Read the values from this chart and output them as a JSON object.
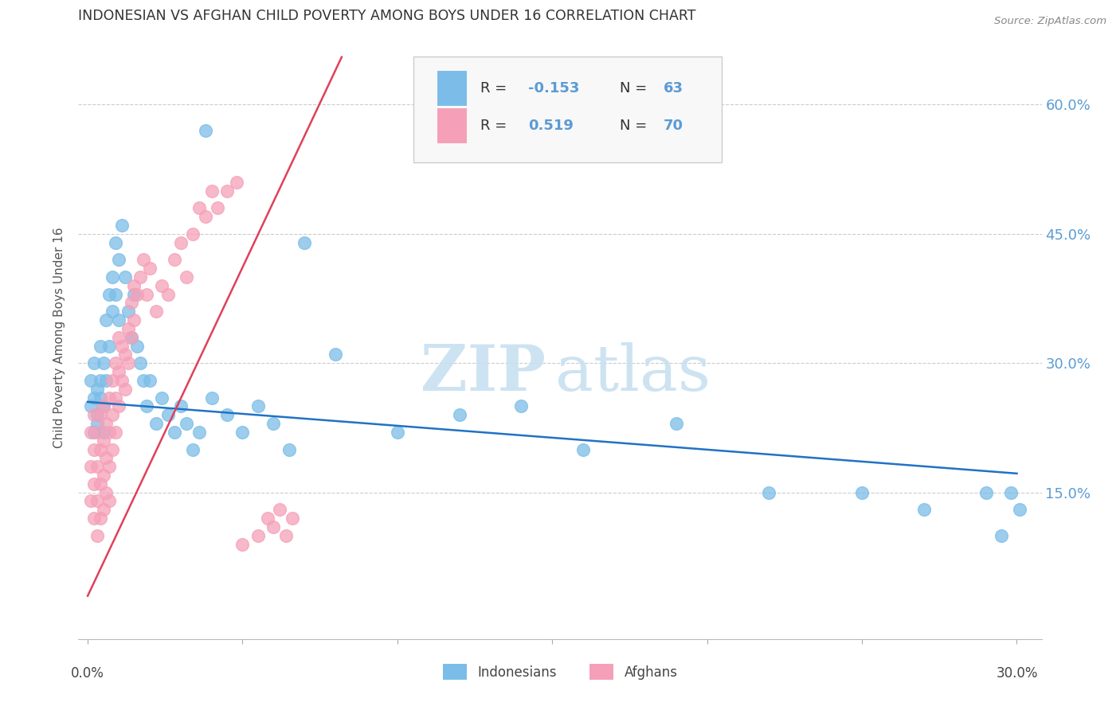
{
  "title": "INDONESIAN VS AFGHAN CHILD POVERTY AMONG BOYS UNDER 16 CORRELATION CHART",
  "source": "Source: ZipAtlas.com",
  "ylabel": "Child Poverty Among Boys Under 16",
  "ytick_values": [
    0.15,
    0.3,
    0.45,
    0.6
  ],
  "ytick_labels": [
    "15.0%",
    "30.0%",
    "45.0%",
    "60.0%"
  ],
  "xlim": [
    -0.003,
    0.308
  ],
  "ylim": [
    -0.02,
    0.68
  ],
  "watermark_zip": "ZIP",
  "watermark_atlas": "atlas",
  "legend_r_indonesian": "-0.153",
  "legend_n_indonesian": "63",
  "legend_r_afghan": "0.519",
  "legend_n_afghan": "70",
  "color_indonesian": "#7bbde8",
  "color_afghan": "#f5a0b8",
  "color_line_indonesian": "#2172c4",
  "color_line_afghan": "#e0405a",
  "ind_line_x0": 0.0,
  "ind_line_y0": 0.255,
  "ind_line_x1": 0.3,
  "ind_line_y1": 0.172,
  "afg_line_x0": 0.0,
  "afg_line_y0": 0.03,
  "afg_line_x1": 0.082,
  "afg_line_y1": 0.655,
  "indonesian_x": [
    0.001,
    0.001,
    0.002,
    0.002,
    0.002,
    0.003,
    0.003,
    0.003,
    0.004,
    0.004,
    0.004,
    0.005,
    0.005,
    0.005,
    0.006,
    0.006,
    0.007,
    0.007,
    0.008,
    0.008,
    0.009,
    0.009,
    0.01,
    0.01,
    0.011,
    0.012,
    0.013,
    0.014,
    0.015,
    0.016,
    0.017,
    0.018,
    0.019,
    0.02,
    0.022,
    0.024,
    0.026,
    0.028,
    0.03,
    0.032,
    0.034,
    0.036,
    0.038,
    0.04,
    0.045,
    0.05,
    0.055,
    0.06,
    0.065,
    0.07,
    0.08,
    0.1,
    0.12,
    0.14,
    0.16,
    0.19,
    0.22,
    0.25,
    0.27,
    0.29,
    0.295,
    0.298,
    0.301
  ],
  "indonesian_y": [
    0.25,
    0.28,
    0.22,
    0.26,
    0.3,
    0.24,
    0.27,
    0.23,
    0.32,
    0.26,
    0.28,
    0.25,
    0.3,
    0.22,
    0.35,
    0.28,
    0.38,
    0.32,
    0.36,
    0.4,
    0.44,
    0.38,
    0.42,
    0.35,
    0.46,
    0.4,
    0.36,
    0.33,
    0.38,
    0.32,
    0.3,
    0.28,
    0.25,
    0.28,
    0.23,
    0.26,
    0.24,
    0.22,
    0.25,
    0.23,
    0.2,
    0.22,
    0.57,
    0.26,
    0.24,
    0.22,
    0.25,
    0.23,
    0.2,
    0.44,
    0.31,
    0.22,
    0.24,
    0.25,
    0.2,
    0.23,
    0.15,
    0.15,
    0.13,
    0.15,
    0.1,
    0.15,
    0.13
  ],
  "afghan_x": [
    0.001,
    0.001,
    0.001,
    0.002,
    0.002,
    0.002,
    0.002,
    0.003,
    0.003,
    0.003,
    0.003,
    0.004,
    0.004,
    0.004,
    0.004,
    0.005,
    0.005,
    0.005,
    0.005,
    0.006,
    0.006,
    0.006,
    0.007,
    0.007,
    0.007,
    0.007,
    0.008,
    0.008,
    0.008,
    0.009,
    0.009,
    0.009,
    0.01,
    0.01,
    0.01,
    0.011,
    0.011,
    0.012,
    0.012,
    0.013,
    0.013,
    0.014,
    0.014,
    0.015,
    0.015,
    0.016,
    0.017,
    0.018,
    0.019,
    0.02,
    0.022,
    0.024,
    0.026,
    0.028,
    0.03,
    0.032,
    0.034,
    0.036,
    0.038,
    0.04,
    0.042,
    0.045,
    0.048,
    0.05,
    0.055,
    0.058,
    0.06,
    0.062,
    0.064,
    0.066
  ],
  "afghan_y": [
    0.14,
    0.18,
    0.22,
    0.12,
    0.16,
    0.2,
    0.24,
    0.1,
    0.14,
    0.18,
    0.22,
    0.12,
    0.16,
    0.2,
    0.24,
    0.13,
    0.17,
    0.21,
    0.25,
    0.15,
    0.19,
    0.23,
    0.14,
    0.18,
    0.22,
    0.26,
    0.2,
    0.24,
    0.28,
    0.22,
    0.26,
    0.3,
    0.25,
    0.29,
    0.33,
    0.28,
    0.32,
    0.27,
    0.31,
    0.3,
    0.34,
    0.33,
    0.37,
    0.35,
    0.39,
    0.38,
    0.4,
    0.42,
    0.38,
    0.41,
    0.36,
    0.39,
    0.38,
    0.42,
    0.44,
    0.4,
    0.45,
    0.48,
    0.47,
    0.5,
    0.48,
    0.5,
    0.51,
    0.09,
    0.1,
    0.12,
    0.11,
    0.13,
    0.1,
    0.12
  ]
}
